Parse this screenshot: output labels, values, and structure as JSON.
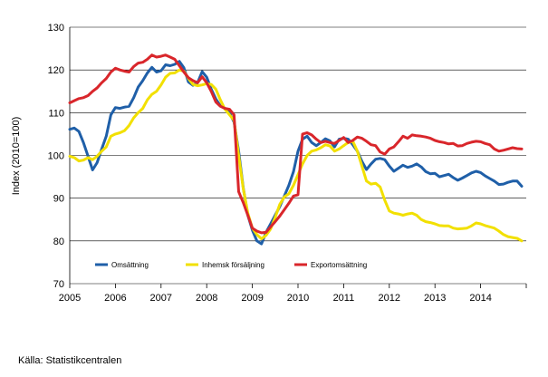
{
  "source_text": "Källa: Statistikcentralen",
  "chart_data": {
    "type": "line",
    "ylabel": "Index (2010=100)",
    "ylim": [
      70,
      130
    ],
    "yticks": [
      70,
      80,
      90,
      100,
      110,
      120,
      130
    ],
    "xlim": [
      2005,
      2015
    ],
    "xticks": [
      "2005",
      "2006",
      "2007",
      "2008",
      "2009",
      "2010",
      "2011",
      "2012",
      "2013",
      "2014"
    ],
    "grid": "horizontal",
    "legend_placement": "inside-lower-left",
    "series": [
      {
        "name": "Omsättning",
        "color": "#1f5fa8",
        "points": [
          [
            2005.0,
            106.1
          ],
          [
            2005.1,
            106.4
          ],
          [
            2005.2,
            105.6
          ],
          [
            2005.3,
            103.0
          ],
          [
            2005.4,
            99.8
          ],
          [
            2005.5,
            96.6
          ],
          [
            2005.6,
            98.3
          ],
          [
            2005.7,
            101.5
          ],
          [
            2005.8,
            104.5
          ],
          [
            2005.9,
            109.5
          ],
          [
            2006.0,
            111.2
          ],
          [
            2006.1,
            111.0
          ],
          [
            2006.2,
            111.3
          ],
          [
            2006.3,
            111.5
          ],
          [
            2006.4,
            113.5
          ],
          [
            2006.5,
            116.0
          ],
          [
            2006.6,
            117.5
          ],
          [
            2006.7,
            119.3
          ],
          [
            2006.8,
            120.6
          ],
          [
            2006.9,
            119.5
          ],
          [
            2007.0,
            119.8
          ],
          [
            2007.1,
            121.2
          ],
          [
            2007.2,
            121.0
          ],
          [
            2007.3,
            121.3
          ],
          [
            2007.4,
            122.0
          ],
          [
            2007.5,
            120.5
          ],
          [
            2007.6,
            117.2
          ],
          [
            2007.7,
            116.4
          ],
          [
            2007.8,
            117.0
          ],
          [
            2007.9,
            119.6
          ],
          [
            2008.0,
            118.3
          ],
          [
            2008.1,
            115.5
          ],
          [
            2008.2,
            113.2
          ],
          [
            2008.3,
            111.6
          ],
          [
            2008.4,
            111.0
          ],
          [
            2008.5,
            110.0
          ],
          [
            2008.6,
            107.8
          ],
          [
            2008.7,
            101.0
          ],
          [
            2008.8,
            92.5
          ],
          [
            2008.9,
            86.0
          ],
          [
            2009.0,
            82.5
          ],
          [
            2009.1,
            80.0
          ],
          [
            2009.2,
            79.3
          ],
          [
            2009.3,
            82.0
          ],
          [
            2009.4,
            84.0
          ],
          [
            2009.5,
            86.0
          ],
          [
            2009.6,
            88.0
          ],
          [
            2009.7,
            90.5
          ],
          [
            2009.8,
            93.0
          ],
          [
            2009.9,
            96.2
          ],
          [
            2010.0,
            101.0
          ],
          [
            2010.1,
            103.8
          ],
          [
            2010.2,
            104.5
          ],
          [
            2010.3,
            103.0
          ],
          [
            2010.4,
            102.3
          ],
          [
            2010.5,
            103.0
          ],
          [
            2010.6,
            103.9
          ],
          [
            2010.7,
            103.4
          ],
          [
            2010.8,
            102.0
          ],
          [
            2010.9,
            103.8
          ],
          [
            2011.0,
            104.0
          ],
          [
            2011.1,
            103.8
          ],
          [
            2011.2,
            102.5
          ],
          [
            2011.3,
            101.0
          ],
          [
            2011.4,
            98.6
          ],
          [
            2011.5,
            96.7
          ],
          [
            2011.6,
            98.0
          ],
          [
            2011.7,
            99.1
          ],
          [
            2011.8,
            99.3
          ],
          [
            2011.9,
            99.0
          ],
          [
            2012.0,
            97.5
          ],
          [
            2012.1,
            96.3
          ],
          [
            2012.2,
            97.0
          ],
          [
            2012.3,
            97.7
          ],
          [
            2012.4,
            97.2
          ],
          [
            2012.5,
            97.5
          ],
          [
            2012.6,
            98.0
          ],
          [
            2012.7,
            97.3
          ],
          [
            2012.8,
            96.2
          ],
          [
            2012.9,
            95.7
          ],
          [
            2013.0,
            95.8
          ],
          [
            2013.1,
            95.0
          ],
          [
            2013.2,
            95.3
          ],
          [
            2013.3,
            95.6
          ],
          [
            2013.4,
            94.8
          ],
          [
            2013.5,
            94.2
          ],
          [
            2013.6,
            94.7
          ],
          [
            2013.7,
            95.3
          ],
          [
            2013.8,
            95.9
          ],
          [
            2013.9,
            96.3
          ],
          [
            2014.0,
            96.0
          ],
          [
            2014.1,
            95.2
          ],
          [
            2014.2,
            94.6
          ],
          [
            2014.3,
            94.0
          ],
          [
            2014.4,
            93.2
          ],
          [
            2014.5,
            93.3
          ],
          [
            2014.6,
            93.7
          ],
          [
            2014.7,
            94.0
          ],
          [
            2014.8,
            94.0
          ],
          [
            2014.9,
            92.8
          ]
        ]
      },
      {
        "name": "Inhemsk försäljning",
        "color": "#f2e000",
        "points": [
          [
            2005.0,
            99.8
          ],
          [
            2005.1,
            99.5
          ],
          [
            2005.2,
            98.7
          ],
          [
            2005.3,
            98.9
          ],
          [
            2005.4,
            99.5
          ],
          [
            2005.5,
            99.0
          ],
          [
            2005.6,
            99.8
          ],
          [
            2005.7,
            101.0
          ],
          [
            2005.8,
            102.0
          ],
          [
            2005.9,
            104.5
          ],
          [
            2006.0,
            105.0
          ],
          [
            2006.1,
            105.3
          ],
          [
            2006.2,
            105.8
          ],
          [
            2006.3,
            107.0
          ],
          [
            2006.4,
            108.8
          ],
          [
            2006.5,
            110.0
          ],
          [
            2006.6,
            111.0
          ],
          [
            2006.7,
            113.0
          ],
          [
            2006.8,
            114.3
          ],
          [
            2006.9,
            115.0
          ],
          [
            2007.0,
            116.5
          ],
          [
            2007.1,
            118.3
          ],
          [
            2007.2,
            119.2
          ],
          [
            2007.3,
            119.3
          ],
          [
            2007.4,
            120.0
          ],
          [
            2007.5,
            119.7
          ],
          [
            2007.6,
            118.0
          ],
          [
            2007.7,
            116.6
          ],
          [
            2007.8,
            116.3
          ],
          [
            2007.9,
            116.5
          ],
          [
            2008.0,
            116.8
          ],
          [
            2008.1,
            116.6
          ],
          [
            2008.2,
            115.5
          ],
          [
            2008.3,
            113.0
          ],
          [
            2008.4,
            110.8
          ],
          [
            2008.5,
            109.5
          ],
          [
            2008.6,
            108.2
          ],
          [
            2008.7,
            100.0
          ],
          [
            2008.8,
            92.3
          ],
          [
            2008.9,
            86.5
          ],
          [
            2009.0,
            83.0
          ],
          [
            2009.1,
            81.5
          ],
          [
            2009.2,
            80.5
          ],
          [
            2009.3,
            81.3
          ],
          [
            2009.4,
            82.8
          ],
          [
            2009.5,
            85.5
          ],
          [
            2009.6,
            88.5
          ],
          [
            2009.7,
            90.3
          ],
          [
            2009.8,
            91.0
          ],
          [
            2009.9,
            93.0
          ],
          [
            2010.0,
            95.5
          ],
          [
            2010.1,
            98.0
          ],
          [
            2010.2,
            100.0
          ],
          [
            2010.3,
            101.0
          ],
          [
            2010.4,
            101.3
          ],
          [
            2010.5,
            101.8
          ],
          [
            2010.6,
            102.5
          ],
          [
            2010.7,
            102.2
          ],
          [
            2010.8,
            101.0
          ],
          [
            2010.9,
            101.5
          ],
          [
            2011.0,
            102.3
          ],
          [
            2011.1,
            103.0
          ],
          [
            2011.2,
            103.3
          ],
          [
            2011.3,
            101.0
          ],
          [
            2011.4,
            97.5
          ],
          [
            2011.5,
            94.0
          ],
          [
            2011.6,
            93.3
          ],
          [
            2011.7,
            93.5
          ],
          [
            2011.8,
            92.6
          ],
          [
            2011.9,
            89.5
          ],
          [
            2012.0,
            87.0
          ],
          [
            2012.1,
            86.5
          ],
          [
            2012.2,
            86.3
          ],
          [
            2012.3,
            86.0
          ],
          [
            2012.4,
            86.3
          ],
          [
            2012.5,
            86.5
          ],
          [
            2012.6,
            86.0
          ],
          [
            2012.7,
            85.0
          ],
          [
            2012.8,
            84.5
          ],
          [
            2012.9,
            84.3
          ],
          [
            2013.0,
            84.0
          ],
          [
            2013.1,
            83.6
          ],
          [
            2013.2,
            83.5
          ],
          [
            2013.3,
            83.5
          ],
          [
            2013.4,
            83.0
          ],
          [
            2013.5,
            82.8
          ],
          [
            2013.6,
            82.9
          ],
          [
            2013.7,
            83.0
          ],
          [
            2013.8,
            83.5
          ],
          [
            2013.9,
            84.2
          ],
          [
            2014.0,
            84.0
          ],
          [
            2014.1,
            83.6
          ],
          [
            2014.2,
            83.3
          ],
          [
            2014.3,
            83.0
          ],
          [
            2014.4,
            82.3
          ],
          [
            2014.5,
            81.5
          ],
          [
            2014.6,
            81.0
          ],
          [
            2014.7,
            80.8
          ],
          [
            2014.8,
            80.6
          ],
          [
            2014.9,
            80.0
          ]
        ]
      },
      {
        "name": "Exportomsättning",
        "color": "#d9262b",
        "points": [
          [
            2005.0,
            112.3
          ],
          [
            2005.1,
            112.8
          ],
          [
            2005.2,
            113.3
          ],
          [
            2005.3,
            113.5
          ],
          [
            2005.4,
            114.0
          ],
          [
            2005.5,
            115.0
          ],
          [
            2005.6,
            115.8
          ],
          [
            2005.7,
            117.0
          ],
          [
            2005.8,
            118.0
          ],
          [
            2005.9,
            119.5
          ],
          [
            2006.0,
            120.4
          ],
          [
            2006.1,
            120.0
          ],
          [
            2006.2,
            119.7
          ],
          [
            2006.3,
            119.5
          ],
          [
            2006.4,
            120.8
          ],
          [
            2006.5,
            121.6
          ],
          [
            2006.6,
            121.8
          ],
          [
            2006.7,
            122.5
          ],
          [
            2006.8,
            123.5
          ],
          [
            2006.9,
            123.0
          ],
          [
            2007.0,
            123.2
          ],
          [
            2007.1,
            123.5
          ],
          [
            2007.2,
            123.0
          ],
          [
            2007.3,
            122.5
          ],
          [
            2007.4,
            121.0
          ],
          [
            2007.5,
            119.5
          ],
          [
            2007.6,
            118.2
          ],
          [
            2007.7,
            117.5
          ],
          [
            2007.8,
            117.0
          ],
          [
            2007.9,
            118.4
          ],
          [
            2008.0,
            117.0
          ],
          [
            2008.1,
            115.0
          ],
          [
            2008.2,
            112.5
          ],
          [
            2008.3,
            111.5
          ],
          [
            2008.4,
            111.0
          ],
          [
            2008.5,
            110.8
          ],
          [
            2008.6,
            109.5
          ],
          [
            2008.7,
            91.5
          ],
          [
            2008.8,
            89.0
          ],
          [
            2008.9,
            86.0
          ],
          [
            2009.0,
            83.0
          ],
          [
            2009.1,
            82.3
          ],
          [
            2009.2,
            81.9
          ],
          [
            2009.3,
            82.0
          ],
          [
            2009.4,
            83.3
          ],
          [
            2009.5,
            84.5
          ],
          [
            2009.6,
            85.8
          ],
          [
            2009.7,
            87.3
          ],
          [
            2009.8,
            88.8
          ],
          [
            2009.9,
            90.5
          ],
          [
            2010.0,
            90.8
          ],
          [
            2010.1,
            105.0
          ],
          [
            2010.2,
            105.3
          ],
          [
            2010.3,
            104.8
          ],
          [
            2010.4,
            103.8
          ],
          [
            2010.5,
            103.0
          ],
          [
            2010.6,
            103.3
          ],
          [
            2010.7,
            103.0
          ],
          [
            2010.8,
            102.8
          ],
          [
            2010.9,
            103.5
          ],
          [
            2011.0,
            104.2
          ],
          [
            2011.1,
            103.0
          ],
          [
            2011.2,
            103.5
          ],
          [
            2011.3,
            104.3
          ],
          [
            2011.4,
            104.0
          ],
          [
            2011.5,
            103.3
          ],
          [
            2011.6,
            102.5
          ],
          [
            2011.7,
            102.3
          ],
          [
            2011.8,
            100.8
          ],
          [
            2011.9,
            100.3
          ],
          [
            2012.0,
            101.5
          ],
          [
            2012.1,
            102.0
          ],
          [
            2012.2,
            103.2
          ],
          [
            2012.3,
            104.5
          ],
          [
            2012.4,
            104.0
          ],
          [
            2012.5,
            104.8
          ],
          [
            2012.6,
            104.6
          ],
          [
            2012.7,
            104.5
          ],
          [
            2012.8,
            104.3
          ],
          [
            2012.9,
            104.0
          ],
          [
            2013.0,
            103.5
          ],
          [
            2013.1,
            103.2
          ],
          [
            2013.2,
            103.0
          ],
          [
            2013.3,
            102.7
          ],
          [
            2013.4,
            102.8
          ],
          [
            2013.5,
            102.2
          ],
          [
            2013.6,
            102.3
          ],
          [
            2013.7,
            102.8
          ],
          [
            2013.8,
            103.1
          ],
          [
            2013.9,
            103.3
          ],
          [
            2014.0,
            103.2
          ],
          [
            2014.1,
            102.8
          ],
          [
            2014.2,
            102.5
          ],
          [
            2014.3,
            101.5
          ],
          [
            2014.4,
            101.0
          ],
          [
            2014.5,
            101.2
          ],
          [
            2014.6,
            101.5
          ],
          [
            2014.7,
            101.8
          ],
          [
            2014.8,
            101.6
          ],
          [
            2014.9,
            101.5
          ]
        ]
      }
    ]
  }
}
